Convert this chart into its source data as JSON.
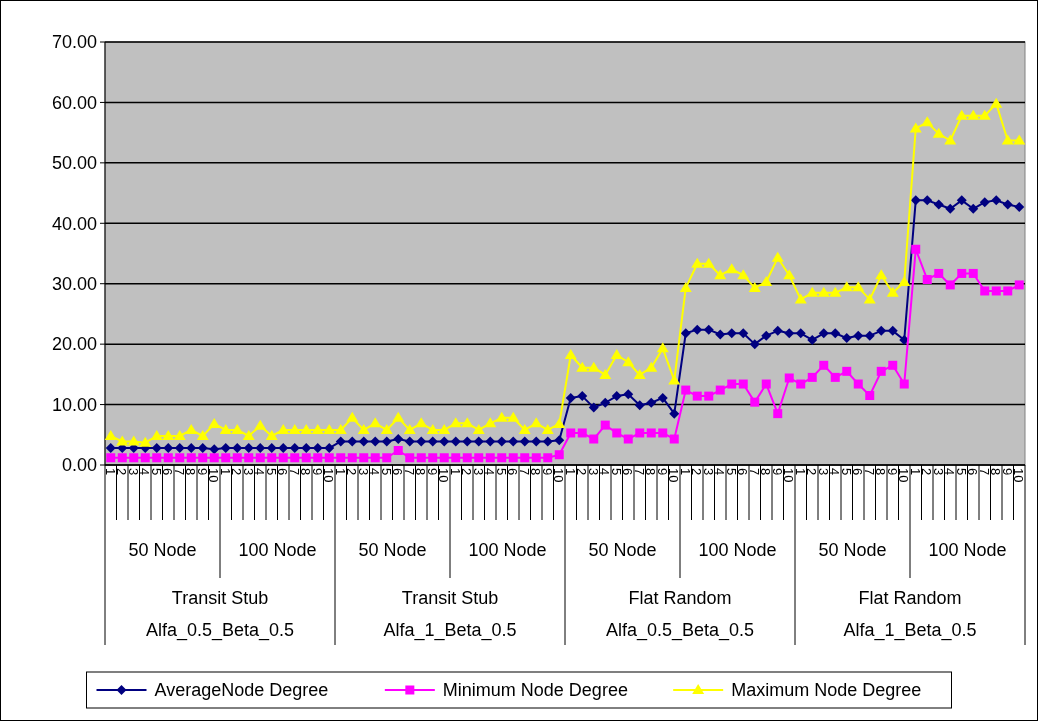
{
  "chart_data": {
    "type": "line",
    "categories": [
      "1",
      "2",
      "3",
      "4",
      "5",
      "6",
      "7",
      "8",
      "9",
      "10",
      "1",
      "2",
      "3",
      "4",
      "5",
      "6",
      "7",
      "8",
      "9",
      "10",
      "1",
      "2",
      "3",
      "4",
      "5",
      "6",
      "7",
      "8",
      "9",
      "10",
      "1",
      "2",
      "3",
      "4",
      "5",
      "6",
      "7",
      "8",
      "9",
      "10",
      "1",
      "2",
      "3",
      "4",
      "5",
      "6",
      "7",
      "8",
      "9",
      "10",
      "1",
      "2",
      "3",
      "4",
      "5",
      "6",
      "7",
      "8",
      "9",
      "10",
      "1",
      "2",
      "3",
      "4",
      "5",
      "6",
      "7",
      "8",
      "9",
      "10",
      "1",
      "2",
      "3",
      "4",
      "5",
      "6",
      "7",
      "8",
      "9",
      "10"
    ],
    "series": [
      {
        "name": "AverageNode Degree",
        "color": "#000080",
        "marker": "diamond",
        "values": [
          2.8,
          2.8,
          2.8,
          2.8,
          2.8,
          2.8,
          2.8,
          2.8,
          2.8,
          2.6,
          2.8,
          2.8,
          2.8,
          2.8,
          2.8,
          2.8,
          2.8,
          2.8,
          2.8,
          2.8,
          3.9,
          3.9,
          3.9,
          3.9,
          3.9,
          4.3,
          3.9,
          3.9,
          3.9,
          3.9,
          3.9,
          3.9,
          3.9,
          3.9,
          3.9,
          3.9,
          3.9,
          3.9,
          3.9,
          4.1,
          11.1,
          11.4,
          9.5,
          10.3,
          11.4,
          11.7,
          9.9,
          10.3,
          11.1,
          8.5,
          21.8,
          22.4,
          22.4,
          21.6,
          21.8,
          21.8,
          20.0,
          21.4,
          22.2,
          21.8,
          21.8,
          20.7,
          21.8,
          21.8,
          21.0,
          21.4,
          21.4,
          22.2,
          22.2,
          20.7,
          43.8,
          43.8,
          43.1,
          42.4,
          43.8,
          42.4,
          43.5,
          43.8,
          43.1,
          42.7
        ]
      },
      {
        "name": "Minimum Node Degree",
        "color": "#ff00ff",
        "marker": "square",
        "values": [
          1.2,
          1.2,
          1.2,
          1.2,
          1.2,
          1.2,
          1.2,
          1.2,
          1.2,
          1.2,
          1.2,
          1.2,
          1.2,
          1.2,
          1.2,
          1.2,
          1.2,
          1.2,
          1.2,
          1.2,
          1.2,
          1.2,
          1.2,
          1.2,
          1.2,
          2.4,
          1.2,
          1.2,
          1.2,
          1.2,
          1.2,
          1.2,
          1.2,
          1.2,
          1.2,
          1.2,
          1.2,
          1.2,
          1.2,
          1.7,
          5.3,
          5.3,
          4.3,
          6.6,
          5.3,
          4.3,
          5.3,
          5.3,
          5.3,
          4.3,
          12.4,
          11.4,
          11.4,
          12.4,
          13.4,
          13.4,
          10.4,
          13.4,
          8.5,
          14.4,
          13.4,
          14.5,
          16.5,
          14.5,
          15.5,
          13.4,
          11.5,
          15.5,
          16.5,
          13.4,
          35.7,
          30.7,
          31.7,
          29.8,
          31.7,
          31.7,
          28.8,
          28.8,
          28.8,
          29.8
        ]
      },
      {
        "name": "Maximum Node Degree",
        "color": "#ffff00",
        "marker": "triangle",
        "values": [
          4.8,
          3.9,
          3.9,
          3.7,
          4.8,
          4.8,
          4.8,
          5.8,
          4.8,
          6.8,
          5.8,
          5.8,
          4.8,
          6.5,
          4.8,
          5.8,
          5.8,
          5.8,
          5.8,
          5.8,
          5.8,
          7.8,
          5.8,
          6.9,
          5.8,
          7.8,
          5.8,
          6.9,
          5.8,
          5.8,
          6.9,
          6.9,
          5.8,
          6.9,
          7.8,
          7.8,
          5.8,
          6.9,
          5.8,
          6.8,
          18.2,
          16.1,
          16.1,
          14.9,
          18.2,
          17.0,
          14.9,
          16.1,
          19.3,
          14.0,
          29.3,
          33.3,
          33.3,
          31.4,
          32.4,
          31.4,
          29.3,
          30.3,
          34.3,
          31.4,
          27.4,
          28.5,
          28.5,
          28.5,
          29.4,
          29.4,
          27.4,
          31.4,
          28.5,
          30.3,
          55.7,
          56.7,
          54.8,
          53.7,
          57.8,
          57.8,
          57.8,
          59.8,
          53.7,
          53.7
        ]
      }
    ],
    "ylim": [
      0,
      70
    ],
    "yticks": [
      {
        "value": 0,
        "label": "0.00"
      },
      {
        "value": 10,
        "label": "10.00"
      },
      {
        "value": 20,
        "label": "20.00"
      },
      {
        "value": 30,
        "label": "30.00"
      },
      {
        "value": 40,
        "label": "40.00"
      },
      {
        "value": 50,
        "label": "50.00"
      },
      {
        "value": 60,
        "label": "60.00"
      },
      {
        "value": 70,
        "label": "70.00"
      }
    ],
    "grid": "y",
    "legend": "bottom",
    "annotations": [
      "50 Node",
      "100 Node",
      "50 Node",
      "100 Node",
      "50 Node",
      "100 Node",
      "50 Node",
      "100 Node",
      "Transit Stub\nAlfa_0.5_Beta_0.5",
      "Transit Stub\nAlfa_1_Beta_0.5",
      "Flat Random\nAlfa_0.5_Beta_0.5",
      "Flat Random\nAlfa_1_Beta_0.5"
    ]
  }
}
